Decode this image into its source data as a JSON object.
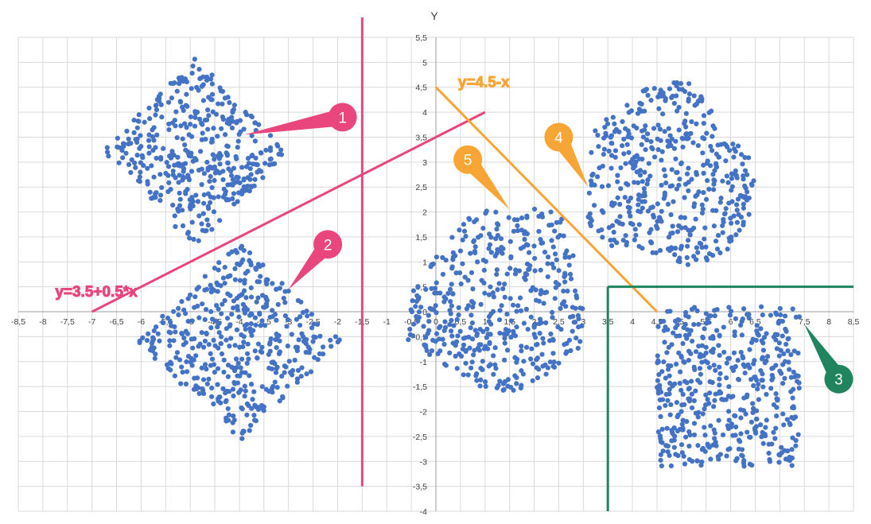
{
  "chart_data": {
    "type": "scatter",
    "title": "",
    "xlabel": "",
    "ylabel": "Y",
    "xlim": [
      -8.5,
      8.5
    ],
    "ylim": [
      -4,
      5.5
    ],
    "x_ticks": [
      "-8,5",
      "-8",
      "-7,5",
      "-7",
      "-6,5",
      "-6",
      "-5,5",
      "-5",
      "-4,5",
      "-4",
      "-3,5",
      "-3",
      "-2,5",
      "-2",
      "-1,5",
      "-1",
      "-0,5",
      "0",
      "0,5",
      "1",
      "1,5",
      "2",
      "2,5",
      "3",
      "3,5",
      "4",
      "4,5",
      "5",
      "5,5",
      "6",
      "6,5",
      "7",
      "7,5",
      "8",
      "8,5"
    ],
    "y_ticks": [
      "-4",
      "-3,5",
      "-3",
      "-2,5",
      "-2",
      "-1,5",
      "-1",
      "-0,5",
      "0",
      "0,5",
      "1",
      "1,5",
      "2",
      "2,5",
      "3",
      "3,5",
      "4",
      "4,5",
      "5",
      "5,5"
    ],
    "grid": true,
    "point_color": "#4472c4",
    "clusters": [
      {
        "shape": "diamond",
        "center": [
          -4.9,
          3.2
        ],
        "rx": 1.9,
        "ry": 1.9,
        "n": 420
      },
      {
        "shape": "diamond",
        "center": [
          -4.0,
          -0.6
        ],
        "rx": 2.1,
        "ry": 2.0,
        "n": 450
      },
      {
        "shape": "box",
        "xrange": [
          4.5,
          7.4
        ],
        "yrange": [
          -3.1,
          0.1
        ],
        "n": 480
      },
      {
        "shape": "blob",
        "xrange": [
          3.0,
          6.5
        ],
        "yrange": [
          0.8,
          4.6
        ],
        "n": 470
      },
      {
        "shape": "blob",
        "xrange": [
          -0.6,
          3.2
        ],
        "yrange": [
          -1.6,
          2.1
        ],
        "n": 460
      }
    ],
    "lines": [
      {
        "label": "y=3.5+0.5*x",
        "color": "#e8467c",
        "x": [
          -7,
          1
        ],
        "y": [
          0,
          4
        ]
      },
      {
        "label": "",
        "color": "#e8467c",
        "x": [
          -1.5,
          -1.5
        ],
        "y": [
          -3.5,
          5.9
        ]
      },
      {
        "label": "y=4.5-x",
        "color": "#f7a535",
        "x": [
          0,
          4.5
        ],
        "y": [
          4.5,
          0
        ]
      },
      {
        "label": "",
        "color": "#20845e",
        "x": [
          3.5,
          3.5
        ],
        "y": [
          -4,
          0.5
        ]
      },
      {
        "label": "",
        "color": "#20845e",
        "x": [
          3.5,
          8.5
        ],
        "y": [
          0.5,
          0.5
        ]
      }
    ],
    "annotations": [
      {
        "text": "y=3.5+0.5*x",
        "color": "#e8467c",
        "x": -7.75,
        "y": 0.3
      },
      {
        "text": "y=4.5-x",
        "color": "#f7a535",
        "x": 0.45,
        "y": 4.5
      }
    ],
    "callouts": [
      {
        "label": "1",
        "color": "#e8467c",
        "x": -1.9,
        "y": 3.9,
        "tip_x": -3.9,
        "tip_y": 3.55
      },
      {
        "label": "2",
        "color": "#e8467c",
        "x": -2.2,
        "y": 1.35,
        "tip_x": -3.0,
        "tip_y": 0.45
      },
      {
        "label": "3",
        "color": "#20845e",
        "x": 8.2,
        "y": -1.35,
        "tip_x": 7.5,
        "tip_y": -0.25
      },
      {
        "label": "4",
        "color": "#f7a535",
        "x": 2.5,
        "y": 3.5,
        "tip_x": 3.1,
        "tip_y": 2.5
      },
      {
        "label": "5",
        "color": "#f7a535",
        "x": 0.65,
        "y": 3.05,
        "tip_x": 1.5,
        "tip_y": 2.05
      }
    ]
  }
}
